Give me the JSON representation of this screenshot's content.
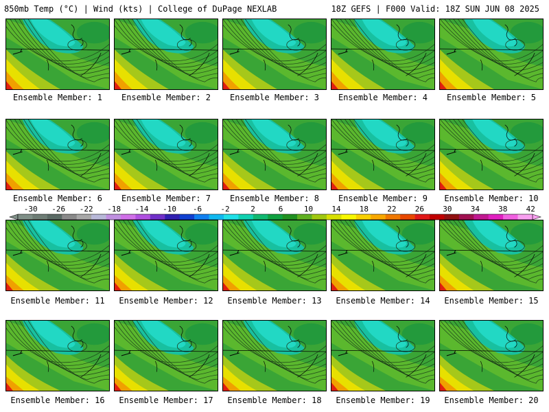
{
  "header": {
    "left_title": "850mb Temp (°C) | Wind (kts) | College of DuPage NEXLAB",
    "right_title": "18Z GEFS | F000 Valid: 18Z SUN JUN 08 2025"
  },
  "member_prefix": "Ensemble Member: ",
  "members": [
    "Ensemble Member: 1",
    "Ensemble Member: 2",
    "Ensemble Member: 3",
    "Ensemble Member: 4",
    "Ensemble Member: 5",
    "Ensemble Member: 6",
    "Ensemble Member: 7",
    "Ensemble Member: 8",
    "Ensemble Member: 9",
    "Ensemble Member: 10",
    "Ensemble Member: 11",
    "Ensemble Member: 12",
    "Ensemble Member: 13",
    "Ensemble Member: 14",
    "Ensemble Member: 15",
    "Ensemble Member: 16",
    "Ensemble Member: 17",
    "Ensemble Member: 18",
    "Ensemble Member: 19",
    "Ensemble Member: 20"
  ],
  "colorbar": {
    "tick_labels": [
      "-30",
      "-26",
      "-22",
      "-18",
      "-14",
      "-10",
      "-6",
      "-2",
      "2",
      "6",
      "10",
      "14",
      "18",
      "22",
      "26",
      "30",
      "34",
      "38",
      "42"
    ],
    "colors": [
      "#7f8f87",
      "#6e7d75",
      "#5a6a64",
      "#8a8a8a",
      "#a8a8a8",
      "#b8b8d8",
      "#c090e0",
      "#d070e8",
      "#b050e0",
      "#7030c8",
      "#3020b0",
      "#1040d0",
      "#1080f0",
      "#10b8f0",
      "#20e0e8",
      "#10d0b0",
      "#10b870",
      "#10a040",
      "#209020",
      "#60b020",
      "#a0c810",
      "#d8e000",
      "#f8f800",
      "#f8d000",
      "#f8a800",
      "#f07800",
      "#e84800",
      "#e01818",
      "#c00000",
      "#901010",
      "#a01050",
      "#c01890",
      "#e020c0",
      "#f060e0",
      "#f8a0f0"
    ]
  }
}
